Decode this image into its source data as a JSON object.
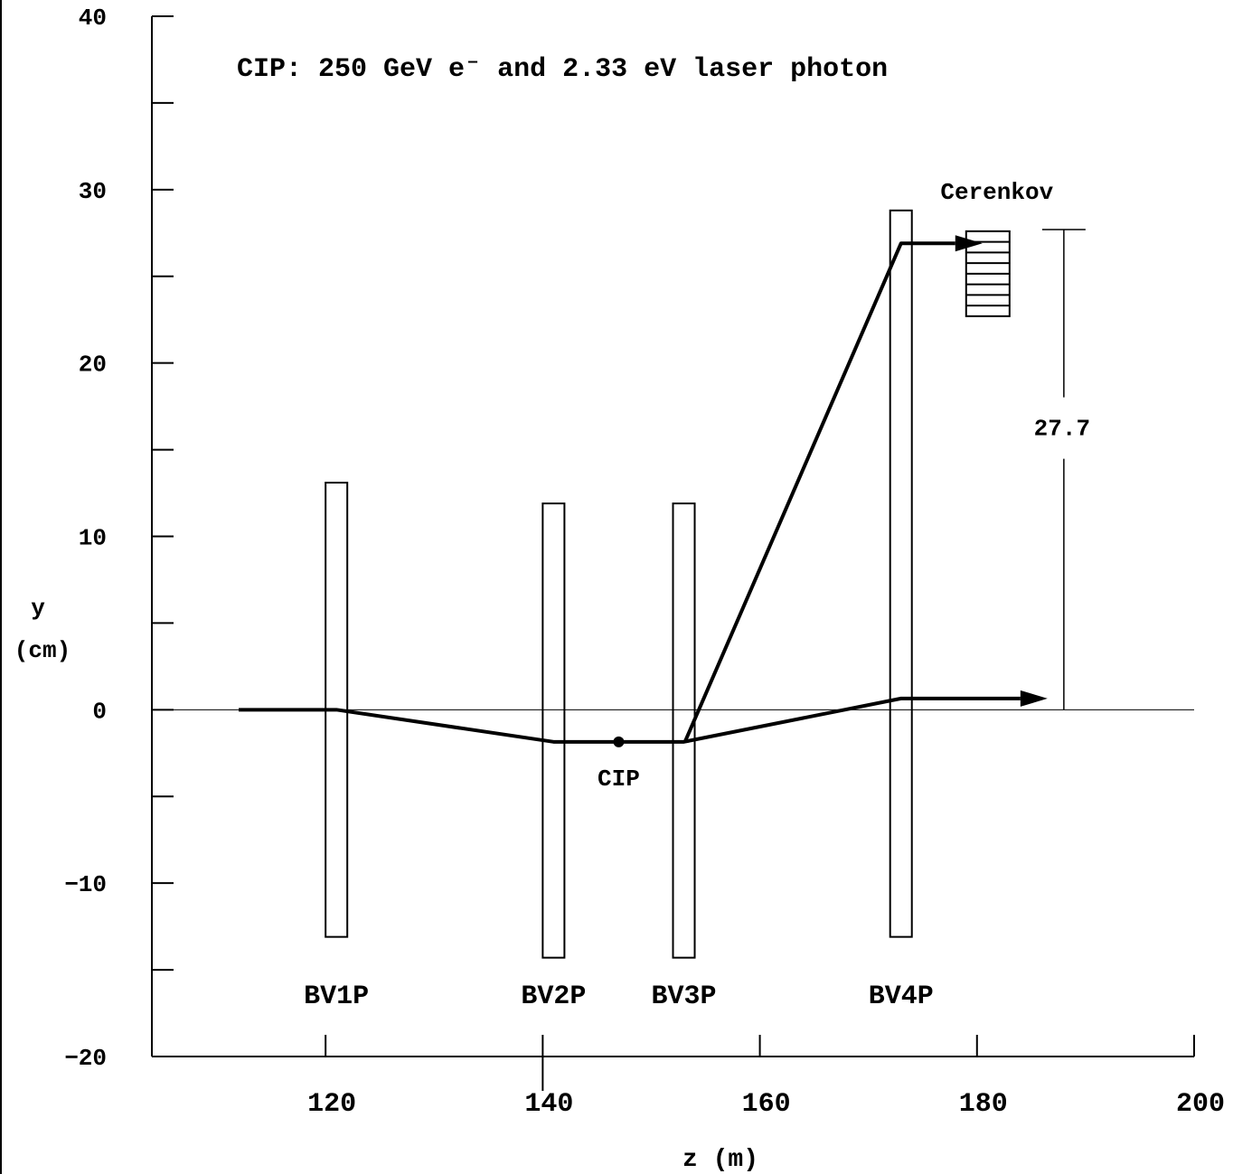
{
  "chart_data": {
    "type": "line",
    "title": "CIP: 250 GeV e⁻ and 2.33 eV laser photon",
    "xlabel": "z (m)",
    "ylabel_line1": "y",
    "ylabel_line2": "(cm)",
    "xlim": [
      104,
      200
    ],
    "ylim": [
      -20,
      40
    ],
    "grid": false,
    "x_ticks": [
      {
        "value": 120,
        "label": "120"
      },
      {
        "value": 140,
        "label": "140"
      },
      {
        "value": 160,
        "label": "160"
      },
      {
        "value": 180,
        "label": "180"
      },
      {
        "value": 200,
        "label": "200"
      }
    ],
    "y_ticks": [
      {
        "value": -20,
        "label": "−20"
      },
      {
        "value": -15,
        "label": ""
      },
      {
        "value": -10,
        "label": "−10"
      },
      {
        "value": -5,
        "label": ""
      },
      {
        "value": 0,
        "label": "0"
      },
      {
        "value": 5,
        "label": ""
      },
      {
        "value": 10,
        "label": "10"
      },
      {
        "value": 15,
        "label": ""
      },
      {
        "value": 20,
        "label": "20"
      },
      {
        "value": 25,
        "label": ""
      },
      {
        "value": 30,
        "label": "30"
      },
      {
        "value": 35,
        "label": ""
      },
      {
        "value": 40,
        "label": "40"
      }
    ],
    "magnets": [
      {
        "label": "BV1P",
        "z_min": 120,
        "z_max": 122,
        "y_min": -13.1,
        "y_max": 13.1
      },
      {
        "label": "BV2P",
        "z_min": 140,
        "z_max": 142,
        "y_min": -14.3,
        "y_max": 11.9
      },
      {
        "label": "BV3P",
        "z_min": 152,
        "z_max": 154,
        "y_min": -14.3,
        "y_max": 11.9
      },
      {
        "label": "BV4P",
        "z_min": 172,
        "z_max": 174,
        "y_min": -13.1,
        "y_max": 28.8
      }
    ],
    "series": [
      {
        "x": [
          112,
          121,
          141,
          153,
          173,
          184
        ],
        "y": [
          0,
          0,
          -1.85,
          -1.85,
          0.65,
          0.65
        ],
        "arrow_end": true
      },
      {
        "x": [
          153.1,
          173,
          178
        ],
        "y": [
          -1.85,
          26.9,
          26.9
        ],
        "arrow_end": true
      }
    ],
    "cip_point": {
      "label": "CIP",
      "z": 147,
      "y": -1.85
    },
    "detector": {
      "label": "Cerenkov",
      "z_min": 179,
      "z_max": 183,
      "y_min": 22.7,
      "y_max": 27.6,
      "segments": 8
    },
    "dimension": {
      "label": "27.7",
      "z": 188,
      "y_from": 0,
      "y_to": 27.7
    }
  }
}
